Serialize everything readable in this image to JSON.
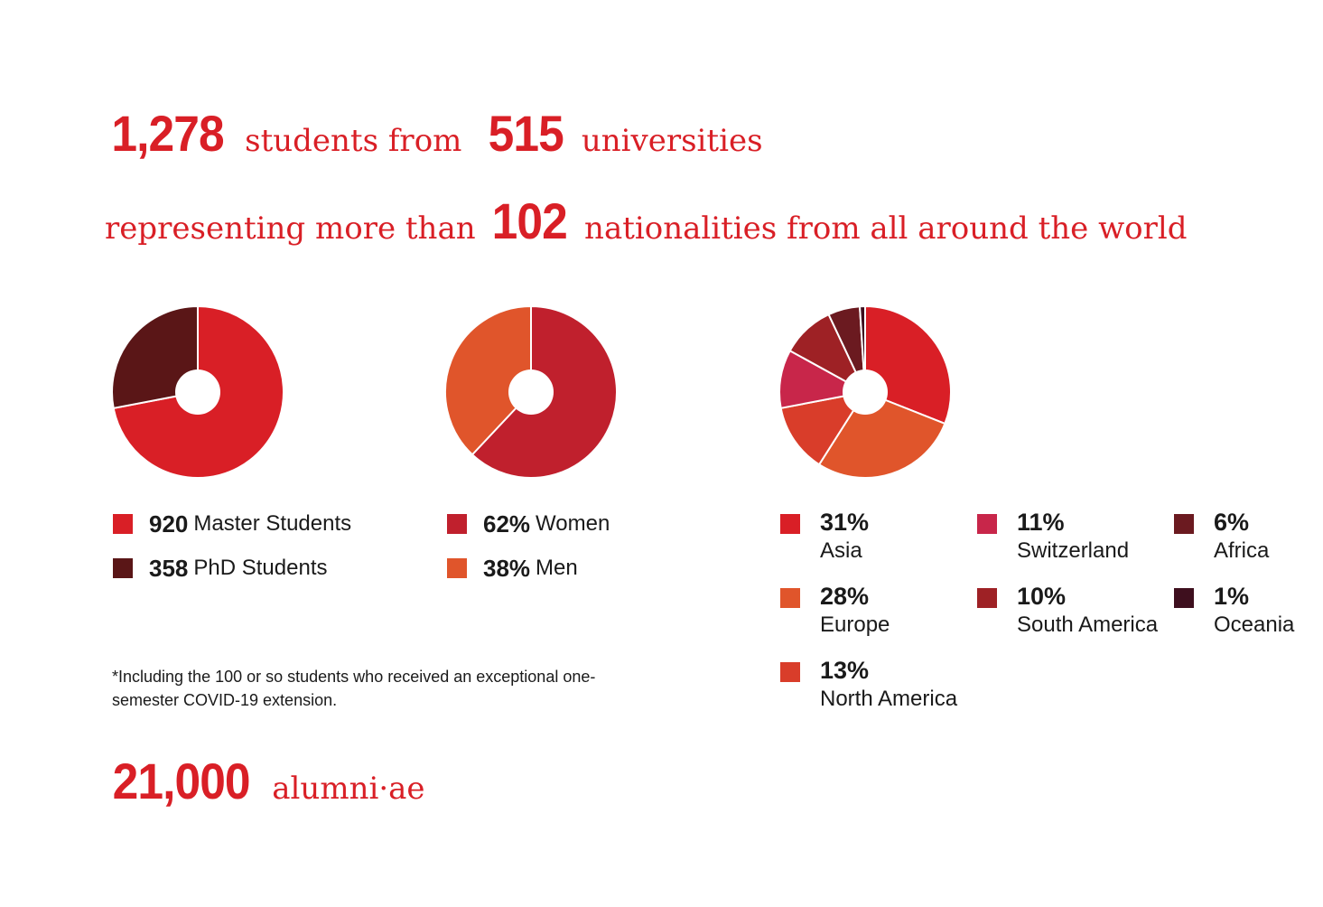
{
  "headline": {
    "students_count": "1,278",
    "students_text": "students from",
    "universities_count": "515",
    "universities_text": "universities",
    "representing_text": "representing more than",
    "nationalities_count": "102",
    "nationalities_text": "nationalities from all around the world",
    "alumni_count": "21,000",
    "alumni_text": "alumni·ae"
  },
  "footnote": "*Including the 100 or so students who received an exceptional one-semester COVID-19 extension.",
  "chart_data": [
    {
      "type": "pie",
      "categories": [
        "Master Students",
        "PhD Students"
      ],
      "values": [
        920,
        358
      ],
      "value_labels": [
        "920",
        "358"
      ],
      "colors": [
        "#d91f26",
        "#5a1617"
      ],
      "legend": "bottom"
    },
    {
      "type": "pie",
      "categories": [
        "Women",
        "Men"
      ],
      "values": [
        62,
        38
      ],
      "value_labels": [
        "62%",
        "38%"
      ],
      "colors": [
        "#c0202d",
        "#e0552b"
      ],
      "legend": "bottom"
    },
    {
      "type": "pie",
      "categories": [
        "Asia",
        "Europe",
        "North America",
        "Switzerland",
        "South America",
        "Africa",
        "Oceania"
      ],
      "values": [
        31,
        28,
        13,
        11,
        10,
        6,
        1
      ],
      "value_labels": [
        "31%",
        "28%",
        "13%",
        "11%",
        "10%",
        "6%",
        "1%"
      ],
      "colors": [
        "#d91f26",
        "#e0552b",
        "#d93d2a",
        "#c8264a",
        "#9e2125",
        "#6b1a20",
        "#3e0f1e"
      ],
      "legend": "bottom"
    }
  ]
}
